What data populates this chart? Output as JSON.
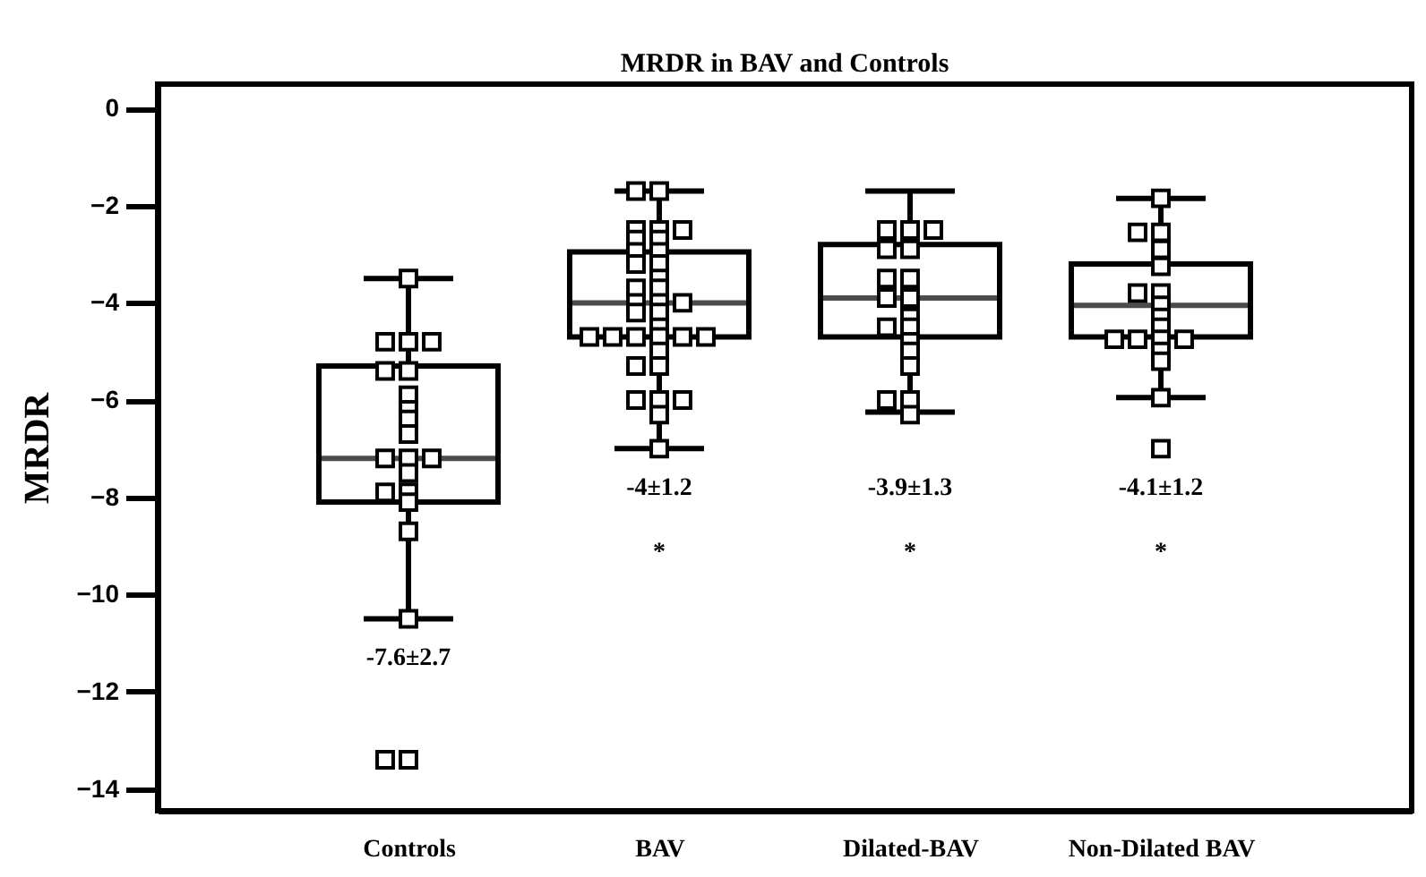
{
  "chart_data": {
    "type": "box",
    "title": "MRDR in BAV and Controls",
    "ylabel": "MRDR",
    "categories": [
      "Controls",
      "BAV",
      "Dilated-BAV",
      "Non-Dilated BAV"
    ],
    "ylim": [
      -14.45,
      0.5
    ],
    "yticks": [
      -14,
      -12,
      -10,
      -8,
      -6,
      -4,
      -2,
      0
    ],
    "grid": false,
    "boxes": [
      {
        "low": -10.5,
        "q1": -8.1,
        "median": -7.2,
        "q3": -5.3,
        "high": -3.5,
        "outliers": [
          -13.4,
          -13.4
        ]
      },
      {
        "low": -7.0,
        "q1": -4.7,
        "median": -4.0,
        "q3": -2.95,
        "high": -1.7
      },
      {
        "low": -6.25,
        "q1": -4.7,
        "median": -3.9,
        "q3": -2.8,
        "high": -1.7
      },
      {
        "low": -5.95,
        "q1": -4.7,
        "median": -4.05,
        "q3": -3.2,
        "high": -1.85,
        "outliers": [
          -7.0
        ]
      }
    ],
    "color": "#000000",
    "series": [
      {
        "type": "scatter",
        "marker": "square",
        "color": "#000000",
        "x": [
          "Controls",
          "Controls",
          "Controls",
          "Controls",
          "Controls",
          "Controls",
          "Controls",
          "Controls",
          "Controls",
          "Controls",
          "Controls",
          "Controls",
          "Controls",
          "Controls",
          "Controls",
          "Controls",
          "Controls",
          "Controls",
          "Controls",
          "BAV",
          "BAV",
          "BAV",
          "BAV",
          "BAV",
          "BAV",
          "BAV",
          "BAV",
          "BAV",
          "BAV",
          "BAV",
          "BAV",
          "BAV",
          "BAV",
          "BAV",
          "BAV",
          "BAV",
          "BAV",
          "BAV",
          "BAV",
          "BAV",
          "BAV",
          "BAV",
          "BAV",
          "BAV",
          "BAV",
          "BAV",
          "BAV",
          "BAV",
          "BAV",
          "BAV",
          "BAV",
          "BAV",
          "BAV",
          "Dilated-BAV",
          "Dilated-BAV",
          "Dilated-BAV",
          "Dilated-BAV",
          "Dilated-BAV",
          "Dilated-BAV",
          "Dilated-BAV",
          "Dilated-BAV",
          "Dilated-BAV",
          "Dilated-BAV",
          "Dilated-BAV",
          "Dilated-BAV",
          "Dilated-BAV",
          "Dilated-BAV",
          "Dilated-BAV",
          "Dilated-BAV",
          "Dilated-BAV",
          "Dilated-BAV",
          "Non-Dilated BAV",
          "Non-Dilated BAV",
          "Non-Dilated BAV",
          "Non-Dilated BAV",
          "Non-Dilated BAV",
          "Non-Dilated BAV",
          "Non-Dilated BAV",
          "Non-Dilated BAV",
          "Non-Dilated BAV",
          "Non-Dilated BAV",
          "Non-Dilated BAV",
          "Non-Dilated BAV",
          "Non-Dilated BAV",
          "Non-Dilated BAV",
          "Non-Dilated BAV",
          "Non-Dilated BAV",
          "Non-Dilated BAV"
        ],
        "values": [
          -3.5,
          -4.8,
          -4.8,
          -4.8,
          -5.4,
          -5.4,
          -5.9,
          -6.2,
          -6.4,
          -6.7,
          -7.2,
          -7.2,
          -7.2,
          -7.5,
          -7.9,
          -7.9,
          -8.1,
          -8.7,
          -10.5,
          -1.7,
          -2.5,
          -2.5,
          -2.5,
          -2.7,
          -2.7,
          -2.95,
          -2.95,
          -3.2,
          -3.2,
          -3.5,
          -3.7,
          -3.7,
          -4.0,
          -4.0,
          -4.0,
          -4.2,
          -4.2,
          -4.5,
          -4.7,
          -4.7,
          -4.7,
          -4.7,
          -4.7,
          -4.7,
          -5.0,
          -5.3,
          -5.3,
          -6.0,
          -6.0,
          -6.0,
          -6.3,
          -7.0,
          -1.7,
          -2.5,
          -2.5,
          -2.5,
          -2.9,
          -2.9,
          -3.5,
          -3.5,
          -3.9,
          -3.9,
          -4.3,
          -4.5,
          -4.5,
          -4.8,
          -5.0,
          -5.3,
          -6.0,
          -6.0,
          -6.3,
          -1.85,
          -2.55,
          -2.55,
          -2.9,
          -3.25,
          -3.8,
          -3.8,
          -4.05,
          -4.3,
          -4.5,
          -4.75,
          -4.75,
          -4.75,
          -4.75,
          -5.0,
          -5.2,
          -5.95
        ]
      }
    ],
    "annotations": [
      "-7.6±2.7",
      "-4±1.2",
      "-3.9±1.3",
      "-4.1±1.2",
      "*",
      "*",
      "*"
    ]
  }
}
